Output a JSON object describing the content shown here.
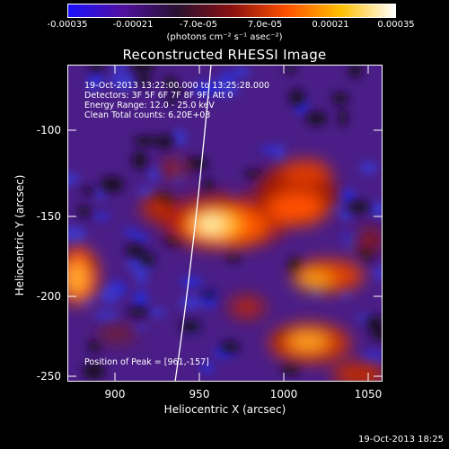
{
  "colorbar": {
    "ticks": [
      "-0.00035",
      "-0.00021",
      "-7.0e-05",
      "7.0e-05",
      "0.00021",
      "0.00035"
    ],
    "unit_label": "(photons cm⁻² s⁻¹ asec⁻²)",
    "colors": [
      "#1a10ff",
      "#5010a0",
      "#281030",
      "#8a1010",
      "#ff5000",
      "#ffc000",
      "#ffffff"
    ]
  },
  "title": "Reconstructed RHESSI Image",
  "info": {
    "line1": "19-Oct-2013 13:22:00.000 to 13:25:28.000",
    "line2": "Detectors: 3F 5F 6F 7F 8F 9F, Att 0",
    "line3": "Energy Range: 12.0 - 25.0 keV",
    "line4": "Clean     Total counts: 6.20E+03",
    "peak": "Position of Peak = [961,-157]"
  },
  "axes": {
    "xlabel": "Heliocentric X (arcsec)",
    "ylabel": "Heliocentric Y (arcsec)",
    "xticks": [
      "900",
      "950",
      "1000",
      "1050"
    ],
    "yticks": [
      "-100",
      "-150",
      "-200",
      "-250"
    ]
  },
  "footer": "19-Oct-2013 18:25"
}
